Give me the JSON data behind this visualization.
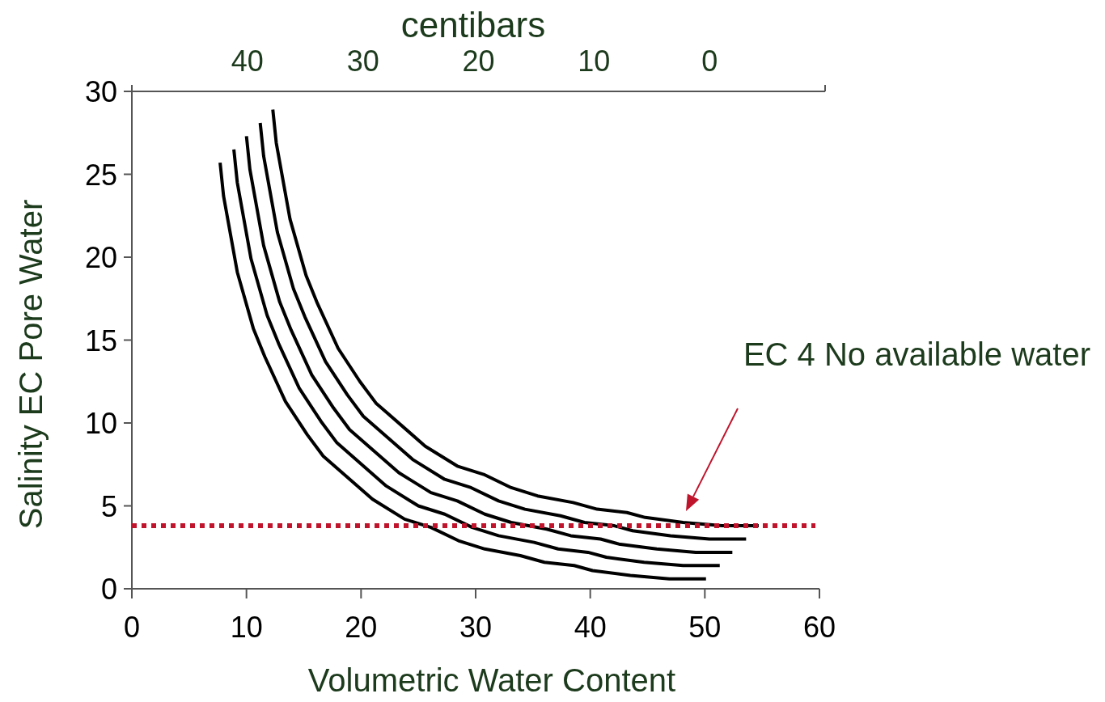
{
  "chart_data": {
    "type": "line",
    "xlabel": "Volumetric Water Content",
    "ylabel": "Salinity EC Pore Water",
    "x2label": "centibars",
    "xlim": [
      0,
      60
    ],
    "xticks": [
      0,
      10,
      20,
      30,
      40,
      50,
      60
    ],
    "ylim": [
      0,
      30
    ],
    "yticks": [
      0,
      5,
      10,
      15,
      20,
      25,
      30
    ],
    "x2lim": [
      50,
      -10
    ],
    "x2ticks": [
      40,
      30,
      20,
      10,
      0
    ],
    "grid": false,
    "marker": "none",
    "line_style": "solid",
    "series": [
      {
        "color": "#000000",
        "x": [
          7.7,
          8.0,
          9.2,
          10.6,
          11.6,
          13.4,
          15.3,
          16.7,
          21.0,
          23.8,
          26.1,
          28.5,
          30.8,
          33.9,
          36.0,
          38.6,
          40.2,
          43.5,
          46.9,
          50.1
        ],
        "values": [
          25.7,
          23.7,
          19.1,
          15.7,
          14.0,
          11.3,
          9.3,
          8.0,
          5.4,
          4.2,
          3.7,
          2.9,
          2.4,
          2.0,
          1.6,
          1.4,
          1.1,
          0.8,
          0.6,
          0.6
        ]
      },
      {
        "color": "#000000",
        "x": [
          8.9,
          9.2,
          10.4,
          11.8,
          12.8,
          14.6,
          16.5,
          17.9,
          22.2,
          25.0,
          27.3,
          29.7,
          32.0,
          35.1,
          37.2,
          39.8,
          41.4,
          44.7,
          48.1,
          51.3
        ],
        "values": [
          26.5,
          24.5,
          19.9,
          16.5,
          14.8,
          12.1,
          10.1,
          8.8,
          6.2,
          5.0,
          4.5,
          3.7,
          3.2,
          2.8,
          2.4,
          2.2,
          1.9,
          1.6,
          1.4,
          1.4
        ]
      },
      {
        "color": "#000000",
        "x": [
          10.0,
          10.3,
          11.5,
          12.9,
          13.9,
          15.7,
          17.6,
          19.0,
          23.3,
          26.1,
          28.4,
          30.8,
          33.1,
          36.2,
          38.3,
          40.9,
          42.5,
          45.8,
          49.2,
          52.4
        ],
        "values": [
          27.3,
          25.3,
          20.7,
          17.3,
          15.6,
          12.9,
          10.9,
          9.6,
          7.0,
          5.8,
          5.3,
          4.5,
          4.0,
          3.6,
          3.2,
          3.0,
          2.7,
          2.4,
          2.2,
          2.2
        ]
      },
      {
        "color": "#000000",
        "x": [
          11.2,
          11.5,
          12.7,
          14.1,
          15.1,
          16.9,
          18.8,
          20.2,
          24.5,
          27.3,
          29.6,
          32.0,
          34.3,
          37.4,
          39.5,
          42.1,
          43.7,
          47.0,
          50.4,
          53.6
        ],
        "values": [
          28.1,
          26.1,
          21.5,
          18.1,
          16.4,
          13.7,
          11.7,
          10.4,
          7.8,
          6.6,
          6.1,
          5.3,
          4.8,
          4.4,
          4.0,
          3.8,
          3.5,
          3.2,
          3.0,
          3.0
        ]
      },
      {
        "color": "#000000",
        "x": [
          12.3,
          12.6,
          13.8,
          15.2,
          16.2,
          18.0,
          19.9,
          21.3,
          25.6,
          28.4,
          30.7,
          33.1,
          35.4,
          38.5,
          40.6,
          43.2,
          44.8,
          48.1,
          51.5,
          54.7
        ],
        "values": [
          28.9,
          26.9,
          22.3,
          18.9,
          17.2,
          14.5,
          12.5,
          11.2,
          8.6,
          7.4,
          6.9,
          6.1,
          5.6,
          5.2,
          4.8,
          4.6,
          4.3,
          4.0,
          3.8,
          3.8
        ]
      }
    ],
    "ref_lines": [
      {
        "axis": "y",
        "value": 3.8,
        "color": "#c0142c",
        "line_style": "dotted"
      }
    ],
    "annotations": [
      "EC 4 No available water"
    ]
  }
}
